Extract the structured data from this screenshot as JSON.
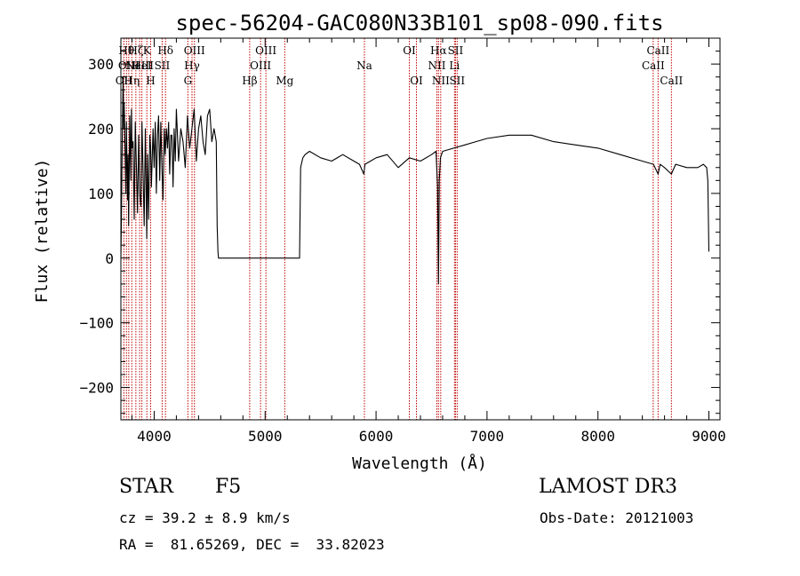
{
  "chart_data": {
    "type": "line",
    "title": "spec-56204-GAC080N33B101_sp08-090.fits",
    "xlabel": "Wavelength (Å)",
    "ylabel": "Flux (relative)",
    "xlim": [
      3700,
      9100
    ],
    "ylim": [
      -250,
      340
    ],
    "xticks": [
      4000,
      5000,
      6000,
      7000,
      8000,
      9000
    ],
    "xtick_labels": [
      "4000",
      "5000",
      "6000",
      "7000",
      "8000",
      "9000"
    ],
    "yticks": [
      -200,
      -100,
      0,
      100,
      200,
      300
    ],
    "ytick_labels": [
      "−200",
      "−100",
      "0",
      "100",
      "200",
      "300"
    ],
    "series": [
      {
        "name": "flux",
        "x": [
          3700,
          3705,
          3712,
          3720,
          3725,
          3730,
          3740,
          3745,
          3750,
          3760,
          3765,
          3770,
          3780,
          3790,
          3795,
          3800,
          3810,
          3820,
          3830,
          3840,
          3850,
          3860,
          3870,
          3880,
          3890,
          3900,
          3910,
          3920,
          3930,
          3933,
          3940,
          3950,
          3960,
          3968,
          3975,
          3990,
          4000,
          4010,
          4020,
          4030,
          4040,
          4050,
          4060,
          4070,
          4080,
          4090,
          4100,
          4110,
          4120,
          4130,
          4140,
          4150,
          4160,
          4170,
          4180,
          4190,
          4200,
          4220,
          4240,
          4260,
          4280,
          4300,
          4320,
          4340,
          4360,
          4380,
          4400,
          4420,
          4440,
          4460,
          4480,
          4500,
          4520,
          4540,
          4560,
          4568,
          4575,
          4580,
          4600,
          4800,
          5000,
          5200,
          5310,
          5320,
          5340,
          5360,
          5400,
          5500,
          5600,
          5700,
          5800,
          5850,
          5890,
          5900,
          5950,
          6000,
          6100,
          6200,
          6300,
          6400,
          6500,
          6540,
          6555,
          6563,
          6570,
          6580,
          6600,
          6700,
          6800,
          6900,
          7000,
          7200,
          7400,
          7600,
          7800,
          8000,
          8200,
          8400,
          8500,
          8542,
          8560,
          8600,
          8662,
          8700,
          8800,
          8900,
          8950,
          8980,
          8990,
          9000
        ],
        "values": [
          0,
          60,
          180,
          280,
          200,
          240,
          150,
          100,
          210,
          90,
          160,
          50,
          220,
          120,
          230,
          170,
          180,
          60,
          210,
          140,
          70,
          190,
          100,
          80,
          210,
          130,
          50,
          200,
          80,
          30,
          160,
          60,
          190,
          170,
          110,
          200,
          140,
          210,
          100,
          190,
          220,
          120,
          210,
          140,
          90,
          200,
          160,
          200,
          170,
          210,
          130,
          190,
          190,
          110,
          200,
          150,
          230,
          150,
          200,
          180,
          140,
          220,
          170,
          200,
          230,
          150,
          200,
          220,
          180,
          160,
          220,
          230,
          180,
          200,
          180,
          50,
          10,
          0,
          0,
          0,
          0,
          0,
          0,
          140,
          155,
          160,
          165,
          155,
          150,
          160,
          150,
          145,
          130,
          145,
          150,
          155,
          160,
          140,
          155,
          150,
          160,
          165,
          110,
          -40,
          120,
          155,
          165,
          170,
          175,
          180,
          185,
          190,
          190,
          180,
          175,
          170,
          160,
          150,
          145,
          130,
          145,
          140,
          130,
          145,
          140,
          140,
          145,
          140,
          120,
          10
        ],
        "color": "#000000"
      }
    ],
    "lines": [
      {
        "x": 3727,
        "label": "OII",
        "row": 3
      },
      {
        "x": 3750,
        "label": "Hθ",
        "row": 1
      },
      {
        "x": 3771,
        "label": "OIII",
        "row": 2
      },
      {
        "x": 3798,
        "label": "Hη",
        "row": 3
      },
      {
        "x": 3835,
        "label": "Hζ",
        "row": 1
      },
      {
        "x": 3869,
        "label": "NeIII",
        "row": 2
      },
      {
        "x": 3889,
        "label": "HeI",
        "row": 2
      },
      {
        "x": 3934,
        "label": "K",
        "row": 1
      },
      {
        "x": 3968,
        "label": "H",
        "row": 3
      },
      {
        "x": 4072,
        "label": "SII",
        "row": 2
      },
      {
        "x": 4102,
        "label": "Hδ",
        "row": 1
      },
      {
        "x": 4304,
        "label": "G",
        "row": 3
      },
      {
        "x": 4341,
        "label": "Hγ",
        "row": 2
      },
      {
        "x": 4363,
        "label": "OIII",
        "row": 1
      },
      {
        "x": 4861,
        "label": "Hβ",
        "row": 3
      },
      {
        "x": 4959,
        "label": "OIII",
        "row": 2
      },
      {
        "x": 5007,
        "label": "OIII",
        "row": 1
      },
      {
        "x": 5177,
        "label": "Mg",
        "row": 3
      },
      {
        "x": 5895,
        "label": "Na",
        "row": 2
      },
      {
        "x": 6300,
        "label": "OI",
        "row": 1
      },
      {
        "x": 6364,
        "label": "OI",
        "row": 3
      },
      {
        "x": 6548,
        "label": "NII",
        "row": 2
      },
      {
        "x": 6563,
        "label": "Hα",
        "row": 1
      },
      {
        "x": 6583,
        "label": "NII",
        "row": 3
      },
      {
        "x": 6707,
        "label": "Li",
        "row": 2
      },
      {
        "x": 6716,
        "label": "SII",
        "row": 1
      },
      {
        "x": 6731,
        "label": "SII",
        "row": 3
      },
      {
        "x": 8498,
        "label": "CaII",
        "row": 2
      },
      {
        "x": 8542,
        "label": "CaII",
        "row": 1
      },
      {
        "x": 8662,
        "label": "CaII",
        "row": 3
      }
    ]
  },
  "info": {
    "class": "STAR",
    "subclass": "F5",
    "survey": "LAMOST DR3",
    "cz": "cz = 39.2 ± 8.9 km/s",
    "obs_date": "Obs-Date: 20121003",
    "coords": "RA =  81.65269, DEC =  33.82023"
  }
}
